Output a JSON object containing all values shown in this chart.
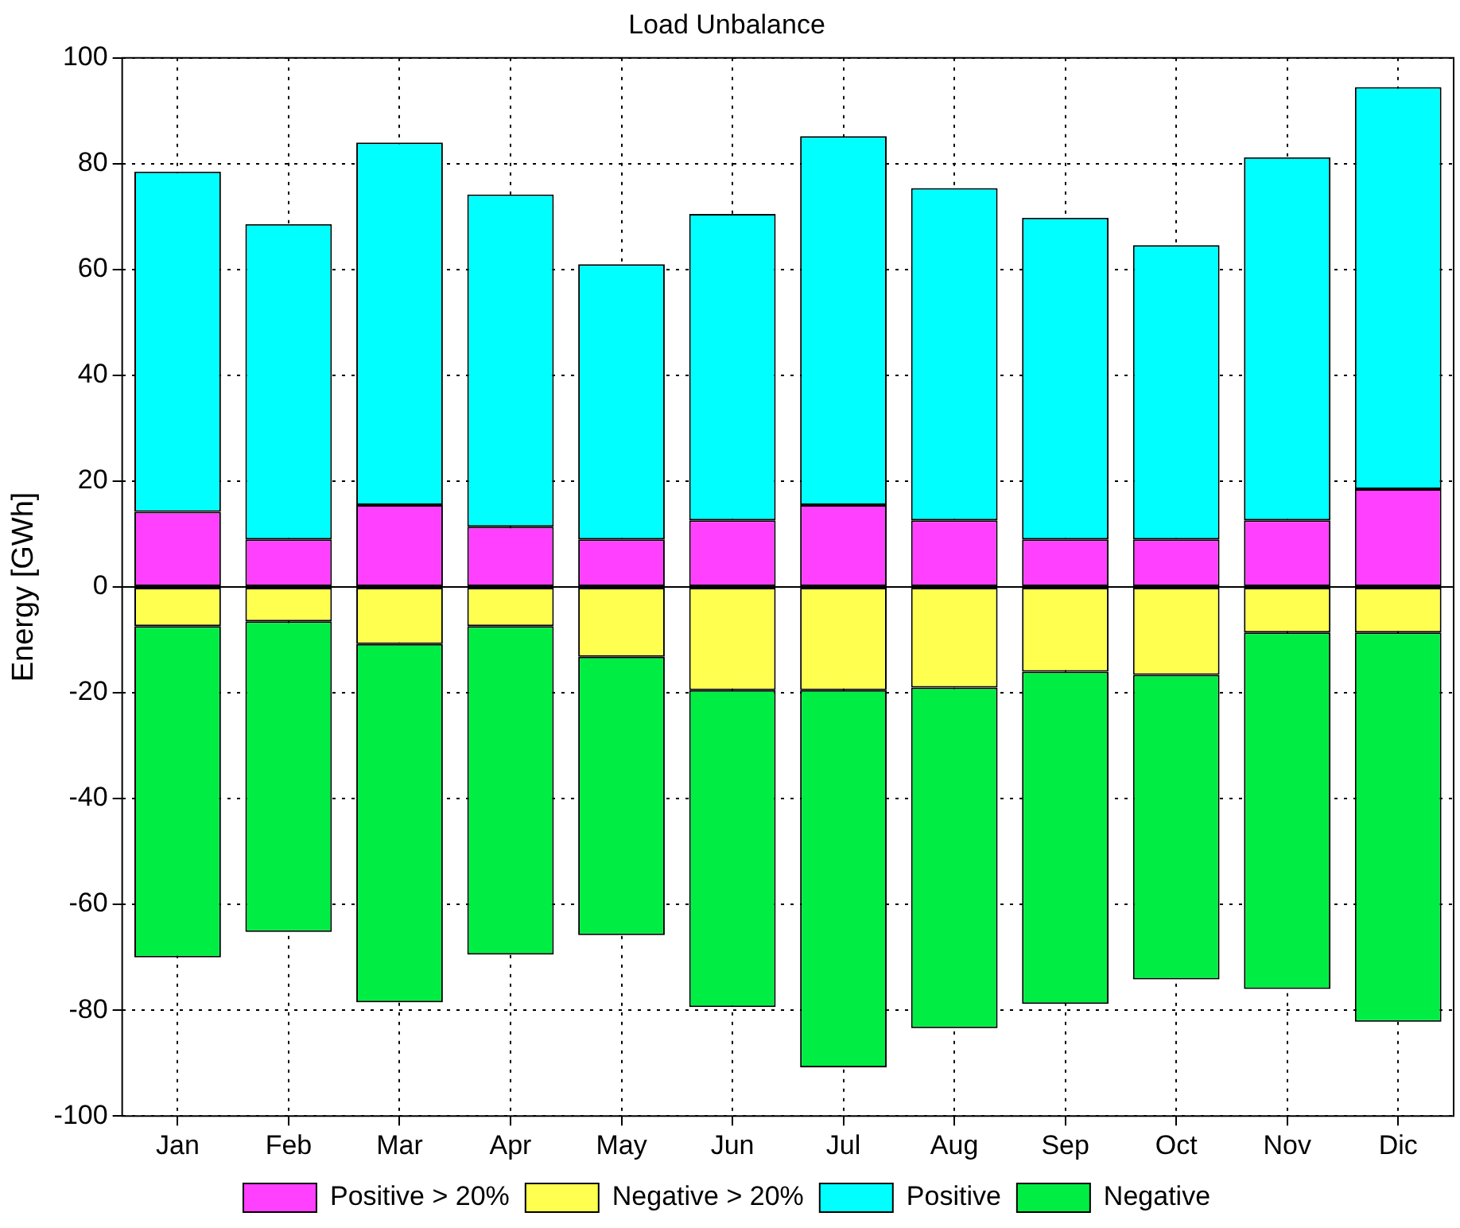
{
  "chart_data": {
    "type": "bar",
    "title": "Load Unbalance",
    "ylabel": "Energy [GWh]",
    "categories": [
      "Jan",
      "Feb",
      "Mar",
      "Apr",
      "May",
      "Jun",
      "Jul",
      "Aug",
      "Sep",
      "Oct",
      "Nov",
      "Dic"
    ],
    "stacked": true,
    "series": [
      {
        "name": "Positive > 20%",
        "color": "#ff40ff",
        "values": [
          14.2,
          9,
          15.5,
          11.4,
          9,
          12.6,
          15.5,
          12.6,
          9,
          9,
          12.6,
          18.5
        ]
      },
      {
        "name": "Negative > 20%",
        "color": "#ffff50",
        "values": [
          -7.4,
          -6.5,
          -10.8,
          -7.4,
          -13.2,
          -19.5,
          -19.5,
          -19,
          -16,
          -16.6,
          -8.6,
          -8.6
        ]
      },
      {
        "name": "Positive",
        "color": "#00ffff",
        "values": [
          64.3,
          59.6,
          68.5,
          62.8,
          52,
          57.9,
          69.7,
          62.8,
          60.8,
          55.6,
          68.6,
          76
        ]
      },
      {
        "name": "Negative",
        "color": "#00ee44",
        "values": [
          -62.6,
          -58.7,
          -67.7,
          -62.1,
          -52.6,
          -59.9,
          -71.3,
          -64.4,
          -62.8,
          -57.6,
          -67.4,
          -73.6
        ]
      }
    ],
    "ylim": [
      -100,
      100
    ],
    "yticks": [
      -100,
      -80,
      -60,
      -40,
      -20,
      0,
      20,
      40,
      60,
      80,
      100
    ],
    "ref_lines": [
      {
        "axis": "y",
        "value": 0,
        "color": "#000000"
      }
    ],
    "grid": true,
    "legend": "bottom"
  }
}
